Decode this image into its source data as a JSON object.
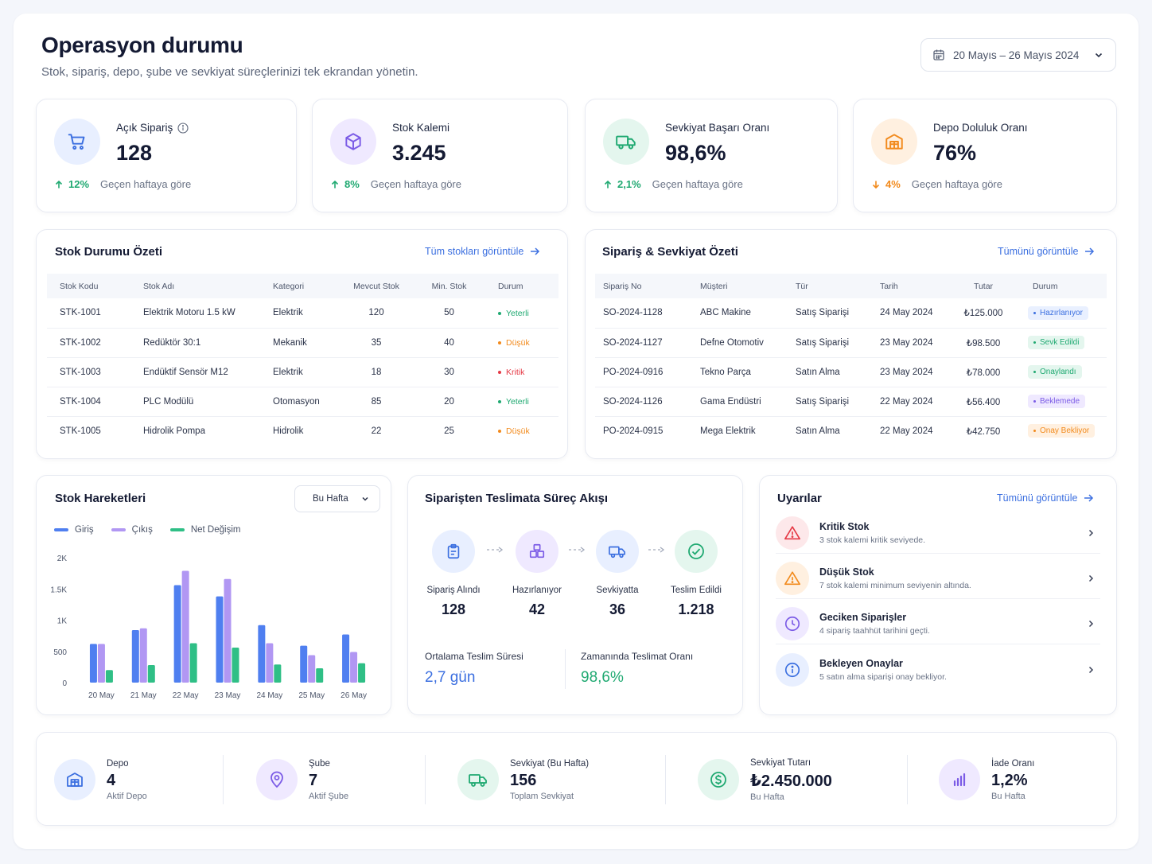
{
  "header": {
    "title": "Operasyon durumu",
    "subtitle": "Stok, sipariş, depo, şube ve sevkiyat süreçlerinizi tek ekrandan yönetin.",
    "date_range": "20 Mayıs – 26 Mayıs 2024"
  },
  "kpis": [
    {
      "label": "Açık Sipariş",
      "value": "128",
      "delta": "12%",
      "note": "Geçen haftaya göre",
      "icon": "cart-icon",
      "trend": "up"
    },
    {
      "label": "Stok Kalemi",
      "value": "3.245",
      "delta": "8%",
      "note": "Geçen haftaya göre",
      "icon": "box-icon",
      "trend": "up"
    },
    {
      "label": "Sevkiyat Başarı Oranı",
      "value": "98,6%",
      "delta": "2,1%",
      "note": "Geçen haftaya göre",
      "icon": "truck-icon",
      "trend": "up"
    },
    {
      "label": "Depo Doluluk Oranı",
      "value": "76%",
      "delta": "4%",
      "note": "Geçen haftaya göre",
      "icon": "warehouse-icon",
      "trend": "down"
    }
  ],
  "stock": {
    "title": "Stok Durumu Özeti",
    "link": "Tüm stokları görüntüle",
    "columns": [
      "Stok Kodu",
      "Stok Adı",
      "Kategori",
      "Mevcut Stok",
      "Min. Stok",
      "Durum"
    ],
    "rows": [
      {
        "code": "STK-1001",
        "name": "Elektrik Motoru 1.5 kW",
        "category": "Elektrik",
        "current": "120",
        "min": "50",
        "status": "Yeterli"
      },
      {
        "code": "STK-1002",
        "name": "Redüktör 30:1",
        "category": "Mekanik",
        "current": "35",
        "min": "40",
        "status": "Düşük"
      },
      {
        "code": "STK-1003",
        "name": "Endüktif Sensör M12",
        "category": "Elektrik",
        "current": "18",
        "min": "30",
        "status": "Kritik"
      },
      {
        "code": "STK-1004",
        "name": "PLC Modülü",
        "category": "Otomasyon",
        "current": "85",
        "min": "20",
        "status": "Yeterli"
      },
      {
        "code": "STK-1005",
        "name": "Hidrolik Pompa",
        "category": "Hidrolik",
        "current": "22",
        "min": "25",
        "status": "Düşük"
      }
    ]
  },
  "orders": {
    "title": "Sipariş & Sevkiyat Özeti",
    "link": "Tümünü görüntüle",
    "columns": [
      "Sipariş No",
      "Müşteri",
      "Tür",
      "Tarih",
      "Tutar",
      "Durum"
    ],
    "rows": [
      {
        "no": "SO-2024-1128",
        "customer": "ABC Makine",
        "type": "Satış Siparişi",
        "date": "24 May 2024",
        "amount": "₺125.000",
        "status": "Hazırlanıyor"
      },
      {
        "no": "SO-2024-1127",
        "customer": "Defne Otomotiv",
        "type": "Satış Siparişi",
        "date": "23 May 2024",
        "amount": "₺98.500",
        "status": "Sevk Edildi"
      },
      {
        "no": "PO-2024-0916",
        "customer": "Tekno Parça",
        "type": "Satın Alma",
        "date": "23 May 2024",
        "amount": "₺78.000",
        "status": "Onaylandı"
      },
      {
        "no": "SO-2024-1126",
        "customer": "Gama Endüstri",
        "type": "Satış Siparişi",
        "date": "22 May 2024",
        "amount": "₺56.400",
        "status": "Beklemede"
      },
      {
        "no": "PO-2024-0915",
        "customer": "Mega Elektrik",
        "type": "Satın Alma",
        "date": "22 May 2024",
        "amount": "₺42.750",
        "status": "Onay Bekliyor"
      }
    ]
  },
  "movements": {
    "title": "Stok Hareketleri",
    "filter": "Bu Hafta"
  },
  "chart_data": {
    "type": "bar",
    "categories": [
      "20 May",
      "21 May",
      "22 May",
      "23 May",
      "24 May",
      "25 May",
      "26 May"
    ],
    "series": [
      {
        "name": "Giriş",
        "color": "#4f7ff0",
        "values": [
          620,
          840,
          1560,
          1380,
          920,
          590,
          770
        ]
      },
      {
        "name": "Çıkış",
        "color": "#b197f3",
        "values": [
          620,
          870,
          1790,
          1660,
          630,
          440,
          490
        ]
      },
      {
        "name": "Net Değişim",
        "color": "#2fbf86",
        "values": [
          200,
          280,
          630,
          560,
          290,
          230,
          310
        ]
      }
    ],
    "ylim": [
      0,
      2000
    ],
    "yticks": [
      0,
      500,
      1000,
      1500,
      2000
    ],
    "ytick_labels": [
      "0",
      "500",
      "1K",
      "1.5K",
      "2K"
    ],
    "legend": "top-left",
    "grid": false
  },
  "flow": {
    "title": "Siparişten Teslimata Süreç Akışı",
    "steps": [
      {
        "label": "Sipariş Alındı",
        "value": "128",
        "icon": "clipboard-icon"
      },
      {
        "label": "Hazırlanıyor",
        "value": "42",
        "icon": "boxes-icon"
      },
      {
        "label": "Sevkiyatta",
        "value": "36",
        "icon": "truck-icon"
      },
      {
        "label": "Teslim Edildi",
        "value": "1.218",
        "icon": "check-circle-icon"
      }
    ],
    "avg_label": "Ortalama Teslim Süresi",
    "avg_value": "2,7 gün",
    "ontime_label": "Zamanında Teslimat Oranı",
    "ontime_value": "98,6%"
  },
  "alerts": {
    "title": "Uyarılar",
    "link": "Tümünü görüntüle",
    "items": [
      {
        "title": "Kritik Stok",
        "desc": "3 stok kalemi kritik seviyede.",
        "icon": "warning-icon"
      },
      {
        "title": "Düşük Stok",
        "desc": "7 stok kalemi minimum seviyenin altında.",
        "icon": "warning-icon"
      },
      {
        "title": "Geciken Siparişler",
        "desc": "4 sipariş taahhüt tarihini geçti.",
        "icon": "clock-icon"
      },
      {
        "title": "Bekleyen Onaylar",
        "desc": "5 satın alma siparişi onay bekliyor.",
        "icon": "info-icon"
      }
    ]
  },
  "summary": [
    {
      "label": "Depo",
      "value": "4",
      "note": "Aktif Depo",
      "icon": "warehouse-icon"
    },
    {
      "label": "Şube",
      "value": "7",
      "note": "Aktif Şube",
      "icon": "location-pin-icon"
    },
    {
      "label": "Sevkiyat (Bu Hafta)",
      "value": "156",
      "note": "Toplam Sevkiyat",
      "icon": "truck-icon"
    },
    {
      "label": "Sevkiyat Tutarı",
      "value": "₺2.450.000",
      "note": "Bu Hafta",
      "icon": "dollar-icon"
    },
    {
      "label": "İade Oranı",
      "value": "1,2%",
      "note": "Bu Hafta",
      "icon": "bar-chart-icon"
    }
  ],
  "colors": {
    "accent": "#3b6fe0",
    "success": "#1fa971",
    "warning": "#f28a1c",
    "danger": "#e53945",
    "purple": "#7b5be6"
  }
}
